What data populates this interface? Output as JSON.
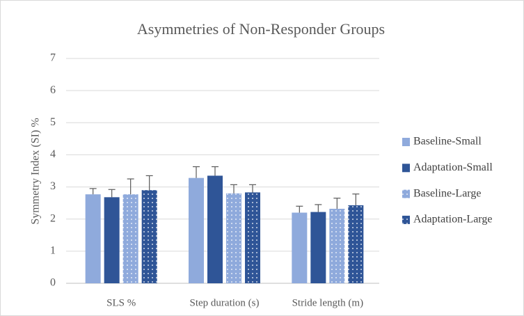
{
  "chart_data": {
    "type": "bar",
    "title": "Asymmetries of Non-Responder Groups",
    "y_label": "Symmetry Index (SI) %",
    "categories": [
      "SLS %",
      "Step duration (s)",
      "Stride length (m)"
    ],
    "series": [
      {
        "name": "Baseline-Small",
        "color": "#8faadc",
        "pattern": "solid",
        "values": [
          2.77,
          3.28,
          2.2
        ],
        "errors": [
          0.18,
          0.35,
          0.2
        ]
      },
      {
        "name": "Adaptation-Small",
        "color": "#2f5597",
        "pattern": "solid",
        "values": [
          2.68,
          3.35,
          2.22
        ],
        "errors": [
          0.24,
          0.28,
          0.23
        ]
      },
      {
        "name": "Baseline-Large",
        "color": "#8faadc",
        "pattern": "dotted",
        "values": [
          2.77,
          2.8,
          2.32
        ],
        "errors": [
          0.48,
          0.27,
          0.33
        ]
      },
      {
        "name": "Adaptation-Large",
        "color": "#2f5597",
        "pattern": "dotted",
        "values": [
          2.9,
          2.83,
          2.43
        ],
        "errors": [
          0.45,
          0.24,
          0.35
        ]
      }
    ],
    "ylim": [
      0,
      7
    ],
    "yticks": [
      0,
      1,
      2,
      3,
      4,
      5,
      6,
      7
    ],
    "grid": true,
    "legend": "right"
  }
}
